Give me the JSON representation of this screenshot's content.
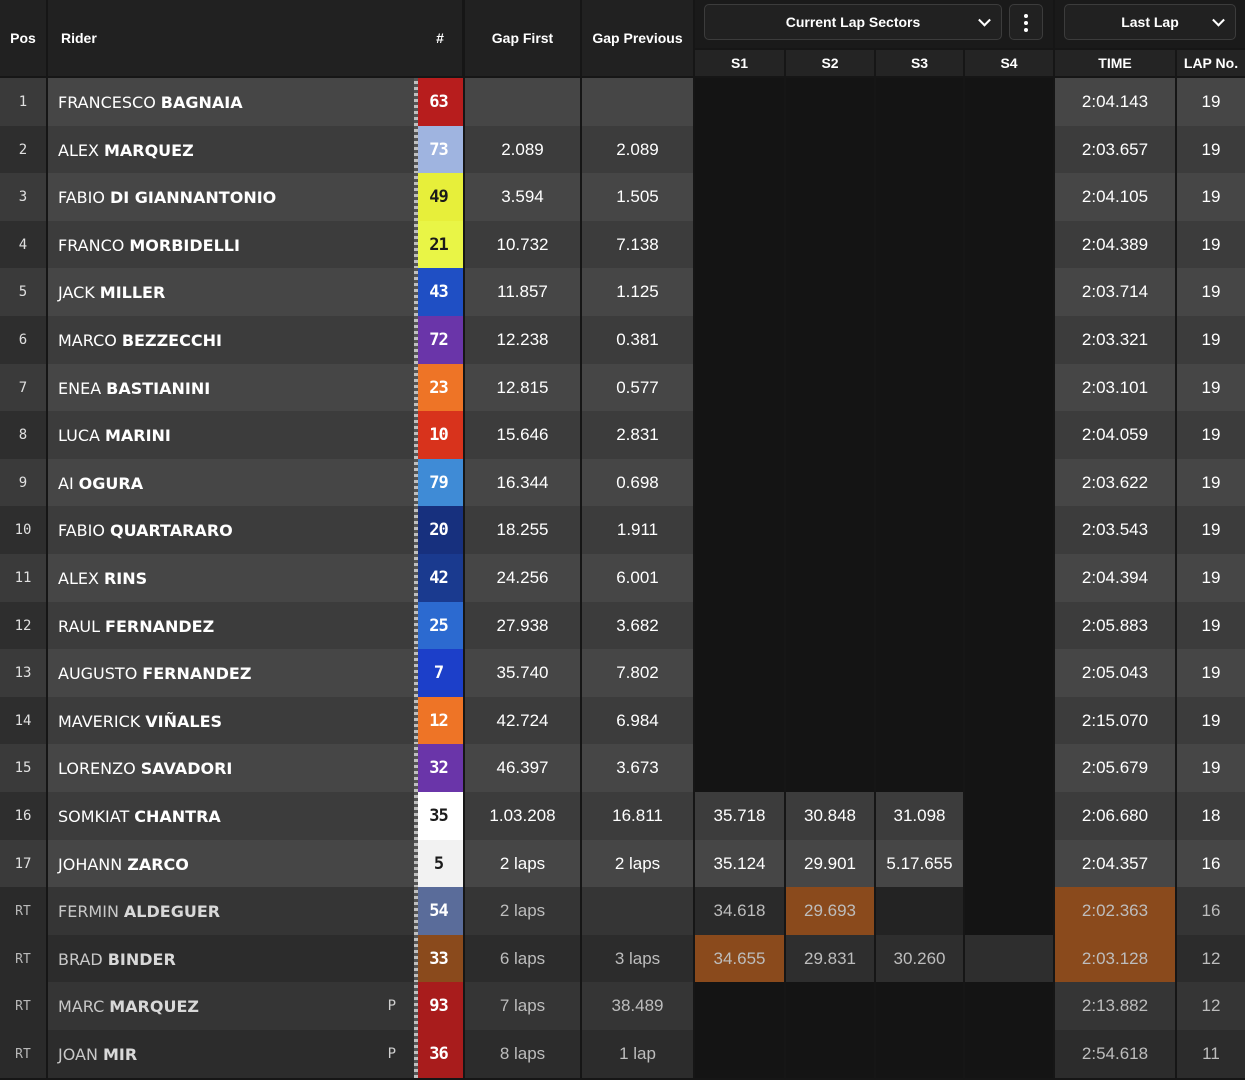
{
  "header": {
    "pos": "Pos",
    "rider": "Rider",
    "number": "#",
    "gap_first": "Gap First",
    "gap_previous": "Gap Previous",
    "sectors_dropdown": "Current Lap Sectors",
    "last_lap_dropdown": "Last Lap",
    "s1": "S1",
    "s2": "S2",
    "s3": "S3",
    "s4": "S4",
    "time": "TIME",
    "lap_no": "LAP No."
  },
  "colors": {
    "orange_highlight": "#8a4a1c",
    "background": "#161616"
  },
  "rows": [
    {
      "pos": "1",
      "first": "FRANCESCO",
      "last": "BAGNAIA",
      "num": "63",
      "num_bg": "#b71d1d",
      "num_fg": "#ffffff",
      "gap_first": "",
      "gap_prev": "",
      "s1": "",
      "s2": "",
      "s3": "",
      "s4": "",
      "time": "2:04.143",
      "lap": "19"
    },
    {
      "pos": "2",
      "first": "ALEX",
      "last": "MARQUEZ",
      "num": "73",
      "num_bg": "#9fb4e0",
      "num_fg": "#ffffff",
      "gap_first": "2.089",
      "gap_prev": "2.089",
      "s1": "",
      "s2": "",
      "s3": "",
      "s4": "",
      "time": "2:03.657",
      "lap": "19"
    },
    {
      "pos": "3",
      "first": "FABIO",
      "last": "DI GIANNANTONIO",
      "num": "49",
      "num_bg": "#e7ef3a",
      "num_fg": "#1a1a1a",
      "gap_first": "3.594",
      "gap_prev": "1.505",
      "s1": "",
      "s2": "",
      "s3": "",
      "s4": "",
      "time": "2:04.105",
      "lap": "19"
    },
    {
      "pos": "4",
      "first": "FRANCO",
      "last": "MORBIDELLI",
      "num": "21",
      "num_bg": "#e9f546",
      "num_fg": "#1a1a1a",
      "gap_first": "10.732",
      "gap_prev": "7.138",
      "s1": "",
      "s2": "",
      "s3": "",
      "s4": "",
      "time": "2:04.389",
      "lap": "19"
    },
    {
      "pos": "5",
      "first": "JACK",
      "last": "MILLER",
      "num": "43",
      "num_bg": "#1f4fc4",
      "num_fg": "#ffffff",
      "gap_first": "11.857",
      "gap_prev": "1.125",
      "s1": "",
      "s2": "",
      "s3": "",
      "s4": "",
      "time": "2:03.714",
      "lap": "19"
    },
    {
      "pos": "6",
      "first": "MARCO",
      "last": "BEZZECCHI",
      "num": "72",
      "num_bg": "#6a35a9",
      "num_fg": "#ffffff",
      "gap_first": "12.238",
      "gap_prev": "0.381",
      "s1": "",
      "s2": "",
      "s3": "",
      "s4": "",
      "time": "2:03.321",
      "lap": "19"
    },
    {
      "pos": "7",
      "first": "ENEA",
      "last": "BASTIANINI",
      "num": "23",
      "num_bg": "#ee7426",
      "num_fg": "#ffffff",
      "gap_first": "12.815",
      "gap_prev": "0.577",
      "s1": "",
      "s2": "",
      "s3": "",
      "s4": "",
      "time": "2:03.101",
      "lap": "19"
    },
    {
      "pos": "8",
      "first": "LUCA",
      "last": "MARINI",
      "num": "10",
      "num_bg": "#d8331c",
      "num_fg": "#ffffff",
      "gap_first": "15.646",
      "gap_prev": "2.831",
      "s1": "",
      "s2": "",
      "s3": "",
      "s4": "",
      "time": "2:04.059",
      "lap": "19"
    },
    {
      "pos": "9",
      "first": "AI",
      "last": "OGURA",
      "num": "79",
      "num_bg": "#3f8bd6",
      "num_fg": "#ffffff",
      "gap_first": "16.344",
      "gap_prev": "0.698",
      "s1": "",
      "s2": "",
      "s3": "",
      "s4": "",
      "time": "2:03.622",
      "lap": "19"
    },
    {
      "pos": "10",
      "first": "FABIO",
      "last": "QUARTARARO",
      "num": "20",
      "num_bg": "#17307e",
      "num_fg": "#ffffff",
      "gap_first": "18.255",
      "gap_prev": "1.911",
      "s1": "",
      "s2": "",
      "s3": "",
      "s4": "",
      "time": "2:03.543",
      "lap": "19"
    },
    {
      "pos": "11",
      "first": "ALEX",
      "last": "RINS",
      "num": "42",
      "num_bg": "#1a3a8f",
      "num_fg": "#ffffff",
      "gap_first": "24.256",
      "gap_prev": "6.001",
      "s1": "",
      "s2": "",
      "s3": "",
      "s4": "",
      "time": "2:04.394",
      "lap": "19"
    },
    {
      "pos": "12",
      "first": "RAUL",
      "last": "FERNANDEZ",
      "num": "25",
      "num_bg": "#2c6ad0",
      "num_fg": "#ffffff",
      "gap_first": "27.938",
      "gap_prev": "3.682",
      "s1": "",
      "s2": "",
      "s3": "",
      "s4": "",
      "time": "2:05.883",
      "lap": "19"
    },
    {
      "pos": "13",
      "first": "AUGUSTO",
      "last": "FERNANDEZ",
      "num": "7",
      "num_bg": "#1c3fc9",
      "num_fg": "#ffffff",
      "gap_first": "35.740",
      "gap_prev": "7.802",
      "s1": "",
      "s2": "",
      "s3": "",
      "s4": "",
      "time": "2:05.043",
      "lap": "19"
    },
    {
      "pos": "14",
      "first": "MAVERICK",
      "last": "VIÑALES",
      "num": "12",
      "num_bg": "#ee7426",
      "num_fg": "#ffffff",
      "gap_first": "42.724",
      "gap_prev": "6.984",
      "s1": "",
      "s2": "",
      "s3": "",
      "s4": "",
      "time": "2:15.070",
      "lap": "19"
    },
    {
      "pos": "15",
      "first": "LORENZO",
      "last": "SAVADORI",
      "num": "32",
      "num_bg": "#6a35a9",
      "num_fg": "#ffffff",
      "gap_first": "46.397",
      "gap_prev": "3.673",
      "s1": "",
      "s2": "",
      "s3": "",
      "s4": "",
      "time": "2:05.679",
      "lap": "19"
    },
    {
      "pos": "16",
      "first": "SOMKIAT",
      "last": "CHANTRA",
      "num": "35",
      "num_bg": "#ffffff",
      "num_fg": "#1a1a1a",
      "gap_first": "1.03.208",
      "gap_prev": "16.811",
      "s1": "35.718",
      "s2": "30.848",
      "s3": "31.098",
      "s4": "",
      "time": "2:06.680",
      "lap": "18"
    },
    {
      "pos": "17",
      "first": "JOHANN",
      "last": "ZARCO",
      "num": "5",
      "num_bg": "#f2f2f2",
      "num_fg": "#1a1a1a",
      "gap_first": "2 laps",
      "gap_prev": "2 laps",
      "s1": "35.124",
      "s2": "29.901",
      "s3": "5.17.655",
      "s4": "",
      "time": "2:04.357",
      "lap": "16"
    },
    {
      "pos": "RT",
      "first": "FERMIN",
      "last": "ALDEGUER",
      "num": "54",
      "num_bg": "#5a6c9a",
      "num_fg": "#ffffff",
      "gap_first": "2 laps",
      "gap_prev": "",
      "s1": "34.618",
      "s2": "29.693",
      "s3": "",
      "s4": "",
      "time": "2:02.363",
      "lap": "16"
    },
    {
      "pos": "RT",
      "first": "BRAD",
      "last": "BINDER",
      "num": "33",
      "num_bg": "#8a4a1c",
      "num_fg": "#ffffff",
      "gap_first": "6 laps",
      "gap_prev": "3 laps",
      "s1": "34.655",
      "s2": "29.831",
      "s3": "30.260",
      "s4": "",
      "time": "2:03.128",
      "lap": "12"
    },
    {
      "pos": "RT",
      "first": "MARC",
      "last": "MARQUEZ",
      "num": "93",
      "num_bg": "#a81c1c",
      "num_fg": "#ffffff",
      "pit": "P",
      "gap_first": "7 laps",
      "gap_prev": "38.489",
      "s1": "",
      "s2": "",
      "s3": "",
      "s4": "",
      "time": "2:13.882",
      "lap": "12"
    },
    {
      "pos": "RT",
      "first": "JOAN",
      "last": "MIR",
      "num": "36",
      "num_bg": "#a81c1c",
      "num_fg": "#ffffff",
      "pit": "P",
      "gap_first": "8 laps",
      "gap_prev": "1 lap",
      "s1": "",
      "s2": "",
      "s3": "",
      "s4": "",
      "time": "2:54.618",
      "lap": "11"
    }
  ]
}
